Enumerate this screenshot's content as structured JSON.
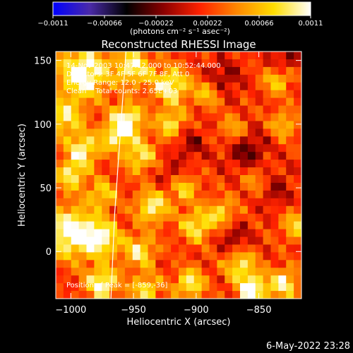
{
  "chart_data": {
    "type": "heatmap",
    "title": "Reconstructed RHESSI Image",
    "xlabel": "Heliocentric X (arcsec)",
    "ylabel": "Heliocentric Y (arcsec)",
    "xlim": [
      -1012,
      -816
    ],
    "ylim": [
      -37,
      157
    ],
    "x_ticks": [
      -1000,
      -950,
      -900,
      -850
    ],
    "x_tick_labels": [
      "−1000",
      "−950",
      "−900",
      "−850"
    ],
    "y_ticks": [
      0,
      50,
      100,
      150
    ],
    "y_tick_labels": [
      "0",
      "50",
      "100",
      "150"
    ],
    "grid": "32x32",
    "colorbar": {
      "min": -0.0011,
      "max": 0.0011,
      "ticks": [
        -0.0011,
        -0.00066,
        -0.00022,
        0.00022,
        0.00066,
        0.0011
      ],
      "tick_labels": [
        "−0.0011",
        "−0.00066",
        "−0.00022",
        "0.00022",
        "0.00066",
        "0.0011"
      ],
      "unit_label": "(photons cm⁻² s⁻¹ asec⁻²)",
      "colors": [
        "#0000ff",
        "#4a2aa8",
        "#000000",
        "#8a0000",
        "#ff2200",
        "#ff8800",
        "#ffdd00",
        "#ffffff"
      ]
    },
    "annotations": [
      "14-Nov-2003 10:47:12.000 to 10:52:44.000",
      "Detectors: 3F 4F 5F 6F 7F 8F, Att 0",
      "Energy Range: 12.0 - 25.0 keV",
      "Clean    Total counts: 2.65E+03"
    ],
    "peak_label": "Position of Peak = [-859,-36]",
    "peak": [
      -859,
      -36
    ],
    "limb_curve": [
      [
        -968,
        -37
      ],
      [
        -965,
        30
      ],
      [
        -960,
        100
      ],
      [
        -956,
        157
      ]
    ],
    "field": {
      "background": 0.0002,
      "blobs": [
        [
          -990,
          140,
          0.001,
          14
        ],
        [
          -950,
          145,
          0.0008,
          10
        ],
        [
          -920,
          130,
          0.00085,
          10
        ],
        [
          -1005,
          105,
          0.0007,
          10
        ],
        [
          -955,
          103,
          0.00095,
          9
        ],
        [
          -965,
          90,
          0.00065,
          8
        ],
        [
          -990,
          80,
          0.0008,
          9
        ],
        [
          -945,
          75,
          0.0007,
          9
        ],
        [
          -1000,
          60,
          0.00075,
          8
        ],
        [
          -975,
          45,
          0.0006,
          8
        ],
        [
          -935,
          35,
          0.0008,
          9
        ],
        [
          -910,
          50,
          0.0006,
          8
        ],
        [
          -1000,
          15,
          0.001,
          14
        ],
        [
          -975,
          10,
          0.0008,
          10
        ],
        [
          -945,
          0,
          0.0007,
          9
        ],
        [
          -900,
          20,
          0.0007,
          9
        ],
        [
          -890,
          125,
          0.0006,
          8
        ],
        [
          -870,
          95,
          0.0005,
          8
        ],
        [
          -835,
          135,
          0.0006,
          8
        ],
        [
          -830,
          100,
          0.0005,
          8
        ],
        [
          -850,
          55,
          0.0005,
          9
        ],
        [
          -820,
          20,
          0.0006,
          8
        ],
        [
          -865,
          -10,
          0.0007,
          9
        ],
        [
          -855,
          -30,
          0.001,
          8
        ],
        [
          -830,
          -25,
          0.0008,
          8
        ],
        [
          -975,
          -25,
          0.0009,
          9
        ],
        [
          -940,
          -30,
          0.0007,
          8
        ],
        [
          -905,
          -25,
          0.0008,
          8
        ],
        [
          -880,
          30,
          0.0006,
          8
        ],
        [
          -920,
          100,
          0.0007,
          8
        ]
      ],
      "sinks": [
        [
          -880,
          135,
          0.00045,
          10
        ],
        [
          -860,
          80,
          0.0005,
          11
        ],
        [
          -840,
          50,
          0.00045,
          10
        ],
        [
          -870,
          10,
          0.0004,
          9
        ],
        [
          -905,
          85,
          0.00035,
          9
        ],
        [
          -920,
          60,
          0.0003,
          8
        ],
        [
          -830,
          150,
          0.0004,
          8
        ]
      ]
    }
  },
  "footer": {
    "timestamp": "6-May-2022 23:28"
  }
}
